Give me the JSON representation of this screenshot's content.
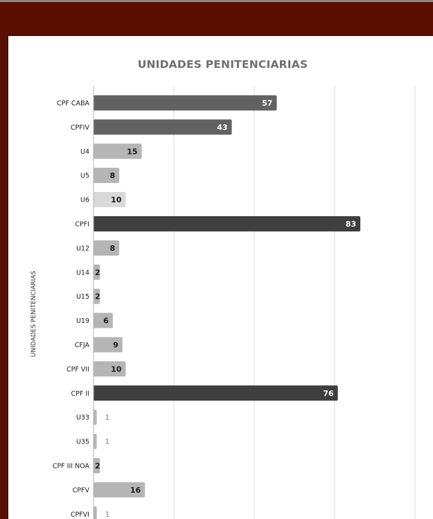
{
  "chart_data": {
    "type": "bar",
    "orientation": "horizontal",
    "title": "UNIDADES PENITENCIARIAS",
    "ylabel": "UNIDADES PENITENCIARIAS",
    "xlabel": "",
    "grid": true,
    "legend": "none",
    "categories": [
      "CPF CABA",
      "CPFIV",
      "U4",
      "U5",
      "U6",
      "CPFI",
      "U12",
      "U14",
      "U15",
      "U19",
      "CFJA",
      "CPF VII",
      "CPF II",
      "U33",
      "U35",
      "CPF III NOA",
      "CPFV",
      "CPFVI"
    ],
    "values": [
      57,
      43,
      15,
      8,
      10,
      83,
      8,
      2,
      2,
      6,
      9,
      10,
      76,
      1,
      1,
      2,
      16,
      1
    ],
    "xlim": [
      0,
      100
    ],
    "bar_colors": [
      "#626262",
      "#626262",
      "#b5b5b5",
      "#b5b5b5",
      "#d9d9d9",
      "#3f3f3f",
      "#b5b5b5",
      "#b5b5b5",
      "#b5b5b5",
      "#b5b5b5",
      "#b5b5b5",
      "#b5b5b5",
      "#3f3f3f",
      "#b5b5b5",
      "#b5b5b5",
      "#b5b5b5",
      "#b5b5b5",
      "#b5b5b5"
    ],
    "label_colors": [
      "#ffffff",
      "#ffffff",
      "#1a1a1a",
      "#1a1a1a",
      "#1a1a1a",
      "#ffffff",
      "#1a1a1a",
      "#1a1a1a",
      "#1a1a1a",
      "#1a1a1a",
      "#1a1a1a",
      "#1a1a1a",
      "#ffffff",
      "#b5b5b5",
      "#b5b5b5",
      "#1a1a1a",
      "#1a1a1a",
      "#b5b5b5"
    ]
  },
  "colors": {
    "frame": "#5a0f00",
    "background": "#ffffff",
    "title": "#6f6f6f",
    "grid": "#d9d9d9",
    "axis": "#b0b0b0"
  }
}
